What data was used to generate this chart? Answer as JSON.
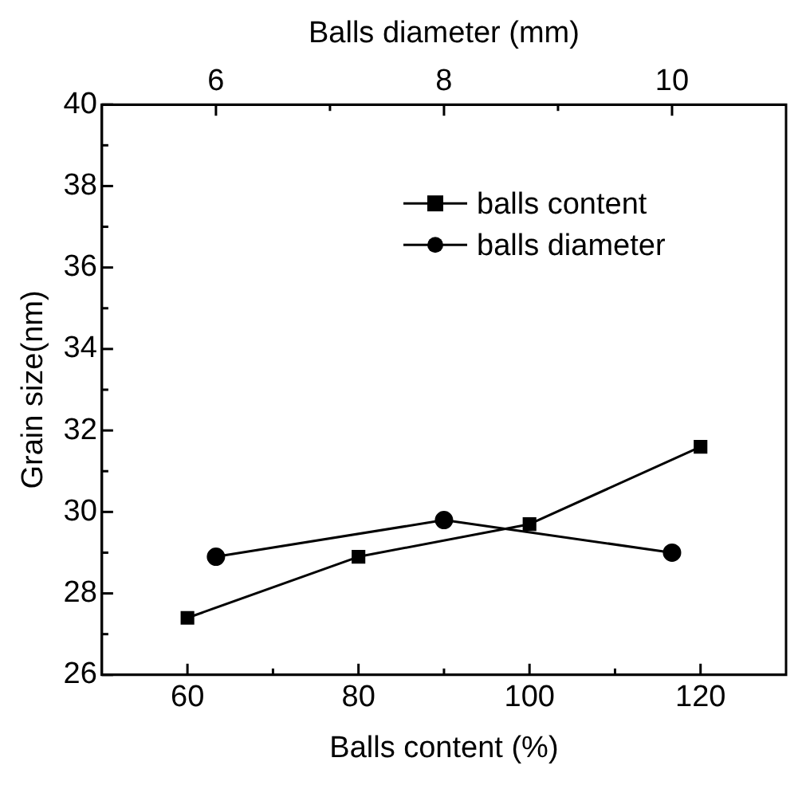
{
  "chart_data": {
    "type": "line",
    "xlabel": "Balls content (%)",
    "x2label": "Balls diameter (mm)",
    "ylabel": "Grain size(nm)",
    "xlim": [
      50,
      130
    ],
    "xticks": [
      {
        "value": 60,
        "label": "60"
      },
      {
        "value": 70,
        "label": null
      },
      {
        "value": 80,
        "label": "80"
      },
      {
        "value": 90,
        "label": null
      },
      {
        "value": 100,
        "label": "100"
      },
      {
        "value": 110,
        "label": null
      },
      {
        "value": 120,
        "label": "120"
      }
    ],
    "x2lim": [
      5,
      11
    ],
    "x2ticks": [
      {
        "value": 6,
        "label": "6"
      },
      {
        "value": 7,
        "label": null
      },
      {
        "value": 8,
        "label": "8"
      },
      {
        "value": 9,
        "label": null
      },
      {
        "value": 10,
        "label": "10"
      }
    ],
    "ylim": [
      26,
      40
    ],
    "yticks": [
      26,
      {
        "value": 27,
        "label": null
      },
      28,
      {
        "value": 29,
        "label": null
      },
      30,
      {
        "value": 31,
        "label": null
      },
      32,
      {
        "value": 33,
        "label": null
      },
      34,
      {
        "value": 35,
        "label": null
      },
      36,
      {
        "value": 37,
        "label": null
      },
      38,
      {
        "value": 39,
        "label": null
      },
      40
    ],
    "legend": "top right",
    "grid": false,
    "line_style": "solid",
    "series": [
      {
        "name": "balls content",
        "color": "#000000",
        "marker": "square",
        "x": [
          60,
          80,
          100,
          120
        ],
        "values": [
          27.4,
          28.9,
          29.7,
          31.6
        ]
      },
      {
        "name": "balls diameter",
        "color": "#000000",
        "marker": "circle",
        "axis": "x2",
        "x": [
          6,
          8,
          10
        ],
        "values": [
          28.9,
          29.8,
          29.0
        ]
      }
    ]
  }
}
